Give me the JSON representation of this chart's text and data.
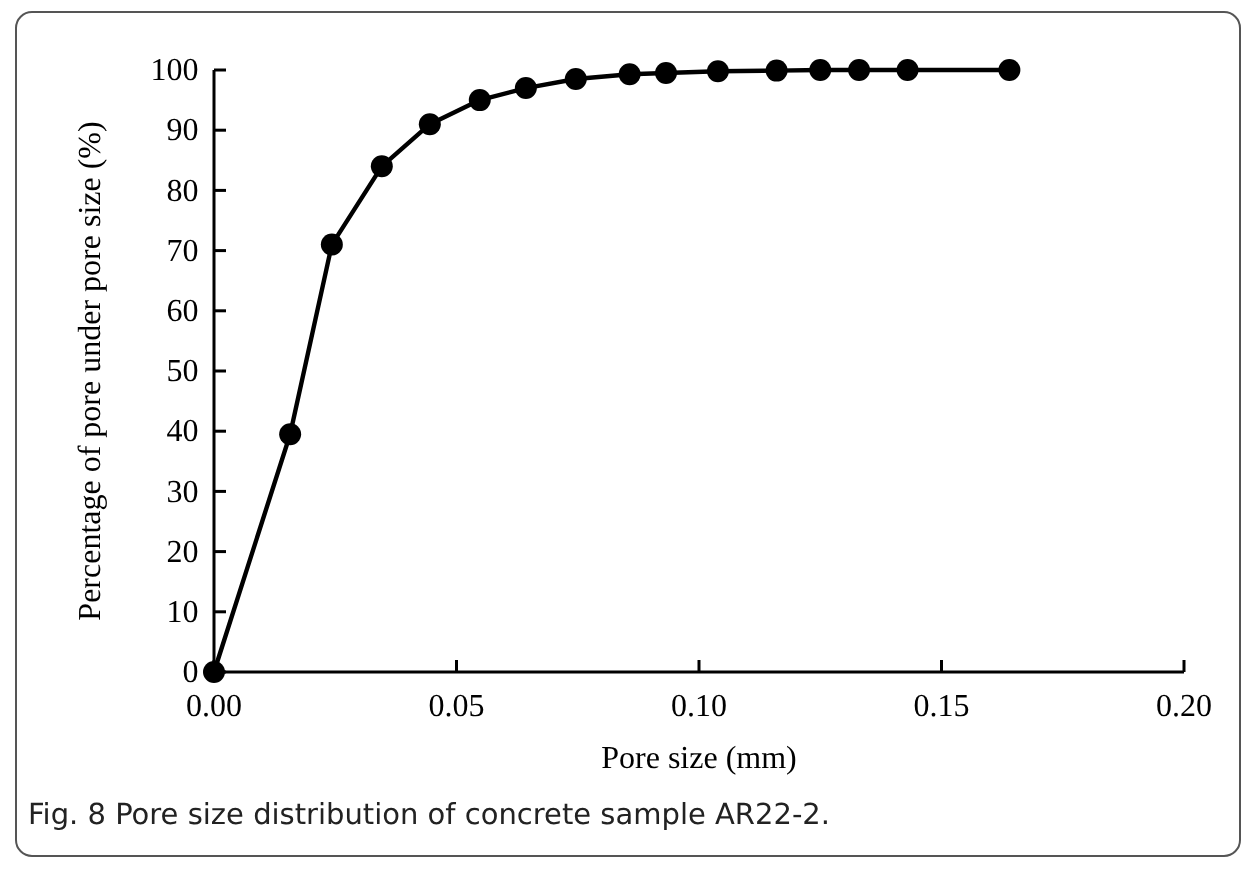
{
  "chart_data": {
    "type": "line",
    "xlabel": "Pore size (mm)",
    "ylabel": "Percentage of pore under pore size (%)",
    "x": [
      0,
      0.0157,
      0.0243,
      0.0346,
      0.0445,
      0.0548,
      0.0643,
      0.0746,
      0.0857,
      0.0932,
      0.1039,
      0.116,
      0.125,
      0.133,
      0.143,
      0.164
    ],
    "series": [
      {
        "color": "#000000",
        "values": [
          0,
          39.5,
          71,
          84,
          91,
          95,
          97,
          98.5,
          99.3,
          99.5,
          99.8,
          99.9,
          100,
          100,
          100,
          100
        ]
      }
    ],
    "xlim": [
      0,
      0.2
    ],
    "xticks": [
      {
        "value": 0,
        "label": "0.00"
      },
      {
        "value": 0.05,
        "label": "0.05"
      },
      {
        "value": 0.1,
        "label": "0.10"
      },
      {
        "value": 0.15,
        "label": "0.15"
      },
      {
        "value": 0.2,
        "label": "0.20"
      }
    ],
    "ylim": [
      0,
      100
    ],
    "yticks": [
      0,
      10,
      20,
      30,
      40,
      50,
      60,
      70,
      80,
      90,
      100
    ],
    "marker": "circle",
    "line_style": "solid",
    "annotations": [
      "Fig. 8 Pore size distribution of concrete sample AR22-2."
    ]
  }
}
